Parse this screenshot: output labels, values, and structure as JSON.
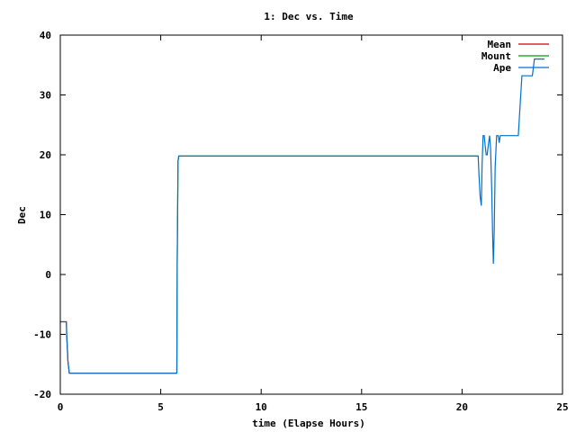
{
  "chart_data": {
    "type": "line",
    "title": "1: Dec vs. Time",
    "xlabel": "time (Elapse Hours)",
    "ylabel": "Dec",
    "xlim": [
      0,
      25
    ],
    "ylim": [
      -20,
      40
    ],
    "xticks": [
      0,
      5,
      10,
      15,
      20,
      25
    ],
    "yticks": [
      -20,
      -10,
      0,
      10,
      20,
      30,
      40
    ],
    "grid": false,
    "legend_position": "top-right",
    "series": [
      {
        "name": "Mean",
        "color": "#cc0000",
        "x": [
          0.0,
          0.3,
          0.32,
          0.38,
          0.45,
          5.8
        ],
        "y": [
          -7.9,
          -7.9,
          -10.0,
          -14.5,
          -16.5,
          -16.5
        ]
      },
      {
        "name": "Mount",
        "color": "#00a000",
        "x": [
          5.8,
          5.82,
          5.86,
          5.9,
          20.8
        ],
        "y": [
          -16.5,
          1.6,
          19.0,
          19.8,
          19.8
        ]
      },
      {
        "name": "Ape",
        "color": "#0070d0",
        "x": [
          0.0,
          0.3,
          0.32,
          0.38,
          0.45,
          5.8,
          5.82,
          5.86,
          5.9,
          20.8,
          20.84,
          20.9,
          20.96,
          21.0,
          21.05,
          21.1,
          21.15,
          21.2,
          21.25,
          21.32,
          21.37,
          21.42,
          21.48,
          21.52,
          21.56,
          21.6,
          21.65,
          21.72,
          21.8,
          21.85,
          21.9,
          22.3,
          22.8,
          22.85,
          22.92,
          22.98,
          23.5,
          23.55,
          23.6,
          23.9,
          24.1
        ],
        "y": [
          -7.9,
          -7.9,
          -10.0,
          -14.5,
          -16.5,
          -16.5,
          1.6,
          19.0,
          19.8,
          19.8,
          17.0,
          13.0,
          11.5,
          18.5,
          23.2,
          23.2,
          21.5,
          20.0,
          20.0,
          22.0,
          23.2,
          21.0,
          14.0,
          7.0,
          1.8,
          7.0,
          18.0,
          23.2,
          23.2,
          22.0,
          23.2,
          23.2,
          23.2,
          26.0,
          30.0,
          33.2,
          33.2,
          34.5,
          36.0,
          36.0,
          36.0
        ]
      }
    ]
  }
}
